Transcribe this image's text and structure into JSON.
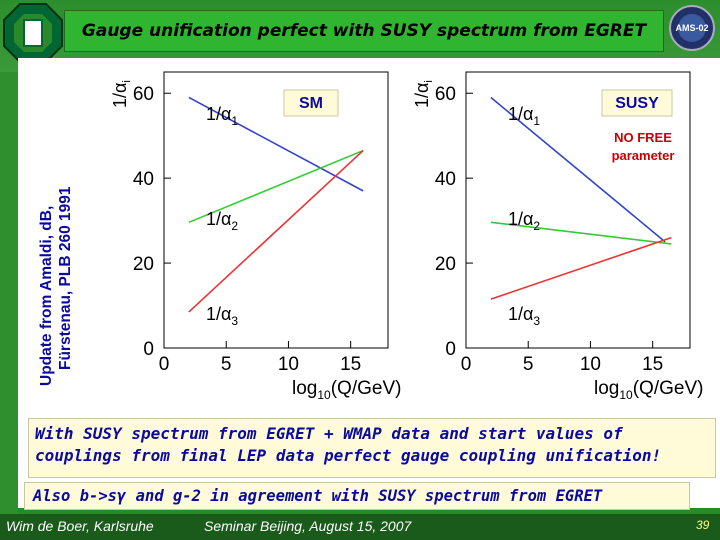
{
  "slide": {
    "title": "Gauge unification perfect with SUSY spectrum from EGRET",
    "side_note_line1": "Update from Amaldi, dB,",
    "side_note_line2": "Fürstenau, PLB 260 1991",
    "conclusion": "With SUSY spectrum from EGRET + WMAP data and start values of couplings from final LEP data perfect gauge coupling unification!",
    "also": "Also b->sγ and g-2 in agreement with SUSY spectrum from EGRET",
    "footer_left": "Wim de Boer, Karlsruhe",
    "footer_center": "Seminar Beijing, August 15, 2007",
    "page_number": "39",
    "logo_right_text": "AMS-02",
    "colors": {
      "header_green": "#2fb52f",
      "text_blue": "#0a0aa0"
    }
  },
  "chart_data": [
    {
      "type": "line",
      "label_box": "SM",
      "ylabel": "1/α_i",
      "xlabel": "log10(Q/GeV)",
      "xlim": [
        0,
        18
      ],
      "ylim": [
        0,
        65
      ],
      "xticks": [
        "0",
        "5",
        "10",
        "15"
      ],
      "yticks": [
        "0",
        "20",
        "40",
        "60"
      ],
      "series": [
        {
          "name": "1/α1",
          "color": "#3344cc",
          "x": [
            2,
            16
          ],
          "y": [
            59,
            37
          ]
        },
        {
          "name": "1/α2",
          "color": "#33cc33",
          "x": [
            2,
            16
          ],
          "y": [
            29.6,
            46.5
          ]
        },
        {
          "name": "1/α3",
          "color": "#ee3333",
          "x": [
            2,
            16
          ],
          "y": [
            8.5,
            46.5
          ]
        }
      ]
    },
    {
      "type": "line",
      "label_box": "SUSY",
      "annotation": "NO FREE parameter",
      "ylabel": "1/α_i",
      "xlabel": "log10(Q/GeV)",
      "xlim": [
        0,
        18
      ],
      "ylim": [
        0,
        65
      ],
      "xticks": [
        "0",
        "5",
        "10",
        "15"
      ],
      "yticks": [
        "0",
        "20",
        "40",
        "60"
      ],
      "series": [
        {
          "name": "1/α1",
          "color": "#3344cc",
          "x": [
            2,
            16
          ],
          "y": [
            59,
            25
          ]
        },
        {
          "name": "1/α2",
          "color": "#33cc33",
          "x": [
            2,
            16.5
          ],
          "y": [
            29.6,
            24.5
          ]
        },
        {
          "name": "1/α3",
          "color": "#ee3333",
          "x": [
            2,
            16.5
          ],
          "y": [
            11.5,
            26
          ]
        }
      ]
    }
  ]
}
